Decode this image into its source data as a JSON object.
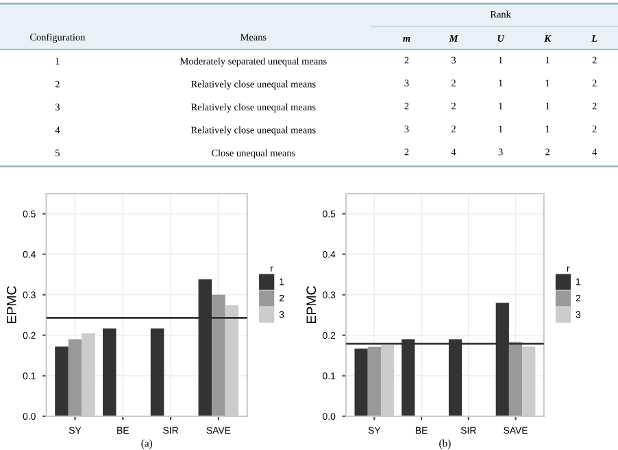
{
  "chart_data": [
    {
      "type": "heatmap",
      "categories": [
        "m",
        "M",
        "U",
        "K",
        "L"
      ],
      "y2_categories": [
        "1",
        "2",
        "3",
        "4",
        "5"
      ],
      "y_categories": [
        "Moderately separated unequal means",
        "Relatively close unequal means",
        "Relatively close unequal means",
        "Relatively close unequal means",
        "Close unequal means"
      ],
      "y2label": "Configuration",
      "ylabel": "Means",
      "annotations": [
        "Rank"
      ],
      "data_labels": true,
      "cells": [
        [
          2,
          3,
          1,
          1,
          2
        ],
        [
          3,
          2,
          1,
          1,
          2
        ],
        [
          2,
          2,
          1,
          1,
          2
        ],
        [
          3,
          2,
          1,
          1,
          2
        ],
        [
          2,
          4,
          3,
          2,
          4
        ]
      ]
    },
    {
      "type": "bar",
      "xlabel": "(a)",
      "ylabel": "EPMC",
      "legend_title": "r",
      "categories": [
        "SY",
        "BE",
        "SIR",
        "SAVE"
      ],
      "series": [
        {
          "name": "1",
          "color": "#333333",
          "values": [
            0.172,
            0.217,
            0.217,
            0.338
          ]
        },
        {
          "name": "2",
          "color": "#999999",
          "values": [
            0.19,
            null,
            null,
            0.3
          ]
        },
        {
          "name": "3",
          "color": "#cccccc",
          "values": [
            0.205,
            null,
            null,
            0.274
          ]
        }
      ],
      "ylim": [
        0,
        0.55
      ],
      "yticks": [
        {
          "value": 0,
          "label": "0.0"
        },
        0.1,
        0.2,
        0.3,
        0.4,
        0.5
      ],
      "grid": true,
      "legend": "right",
      "ref_lines": [
        {
          "axis": "y",
          "value": 0.243,
          "color": "#333333"
        }
      ]
    },
    {
      "type": "bar",
      "xlabel": "(b)",
      "ylabel": "EPMC",
      "legend_title": "r",
      "categories": [
        "SY",
        "BE",
        "SIR",
        "SAVE"
      ],
      "series": [
        {
          "name": "1",
          "color": "#333333",
          "values": [
            0.167,
            0.19,
            0.19,
            0.28
          ]
        },
        {
          "name": "2",
          "color": "#999999",
          "values": [
            0.171,
            null,
            null,
            0.183
          ]
        },
        {
          "name": "3",
          "color": "#cccccc",
          "values": [
            0.176,
            null,
            null,
            0.172
          ]
        }
      ],
      "ylim": [
        0,
        0.55
      ],
      "yticks": [
        {
          "value": 0,
          "label": "0.0"
        },
        0.1,
        0.2,
        0.3,
        0.4,
        0.5
      ],
      "grid": true,
      "legend": "right",
      "ref_lines": [
        {
          "axis": "y",
          "value": 0.179,
          "color": "#333333"
        }
      ]
    }
  ]
}
